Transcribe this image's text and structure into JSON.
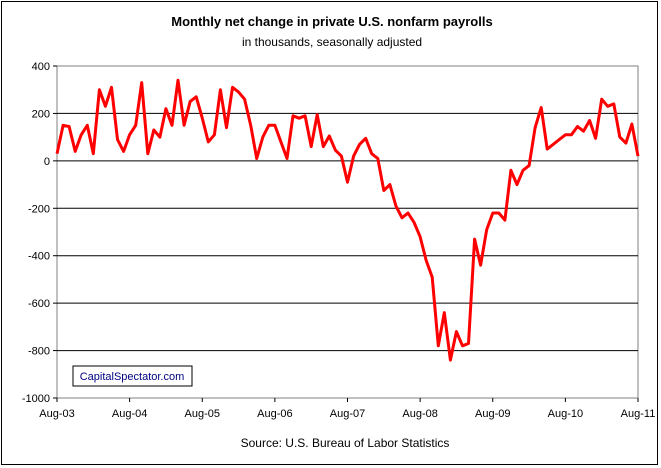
{
  "chart_data": {
    "type": "line",
    "title": "Monthly net change in private U.S. nonfarm payrolls",
    "subtitle": "in thousands, seasonally adjusted",
    "source": "Source: U.S. Bureau of Labor Statistics",
    "watermark": "CapitalSpectator.com",
    "xlabel": "",
    "ylabel": "",
    "ylim": [
      -1000,
      400
    ],
    "yticks": [
      400,
      200,
      0,
      -200,
      -400,
      -600,
      -800,
      -1000
    ],
    "ytick_labels": [
      "400",
      "200",
      "0",
      "-200",
      "-400",
      "-600",
      "-800",
      "-1000"
    ],
    "x_start": "Aug-03",
    "x_end": "Aug-11",
    "xtick_labels": [
      "Aug-03",
      "Aug-04",
      "Aug-05",
      "Aug-06",
      "Aug-07",
      "Aug-08",
      "Aug-09",
      "Aug-10",
      "Aug-11"
    ],
    "grid": true,
    "line_color": "#ff0000",
    "series": [
      {
        "values": [
          30,
          150,
          145,
          40,
          110,
          150,
          30,
          300,
          230,
          310,
          90,
          40,
          110,
          150,
          330,
          30,
          130,
          100,
          220,
          150,
          340,
          150,
          250,
          270,
          180,
          80,
          110,
          300,
          140,
          310,
          290,
          260,
          150,
          10,
          100,
          150,
          150,
          80,
          10,
          190,
          180,
          190,
          60,
          195,
          60,
          105,
          45,
          20,
          -90,
          20,
          70,
          95,
          30,
          10,
          -125,
          -100,
          -190,
          -240,
          -220,
          -260,
          -320,
          -420,
          -490,
          -780,
          -640,
          -840,
          -720,
          -780,
          -770,
          -330,
          -440,
          -290,
          -220,
          -220,
          -250,
          -40,
          -100,
          -40,
          -20,
          140,
          225,
          50,
          70,
          90,
          110,
          110,
          145,
          125,
          170,
          95,
          260,
          230,
          240,
          100,
          75,
          155,
          20
        ]
      }
    ]
  }
}
